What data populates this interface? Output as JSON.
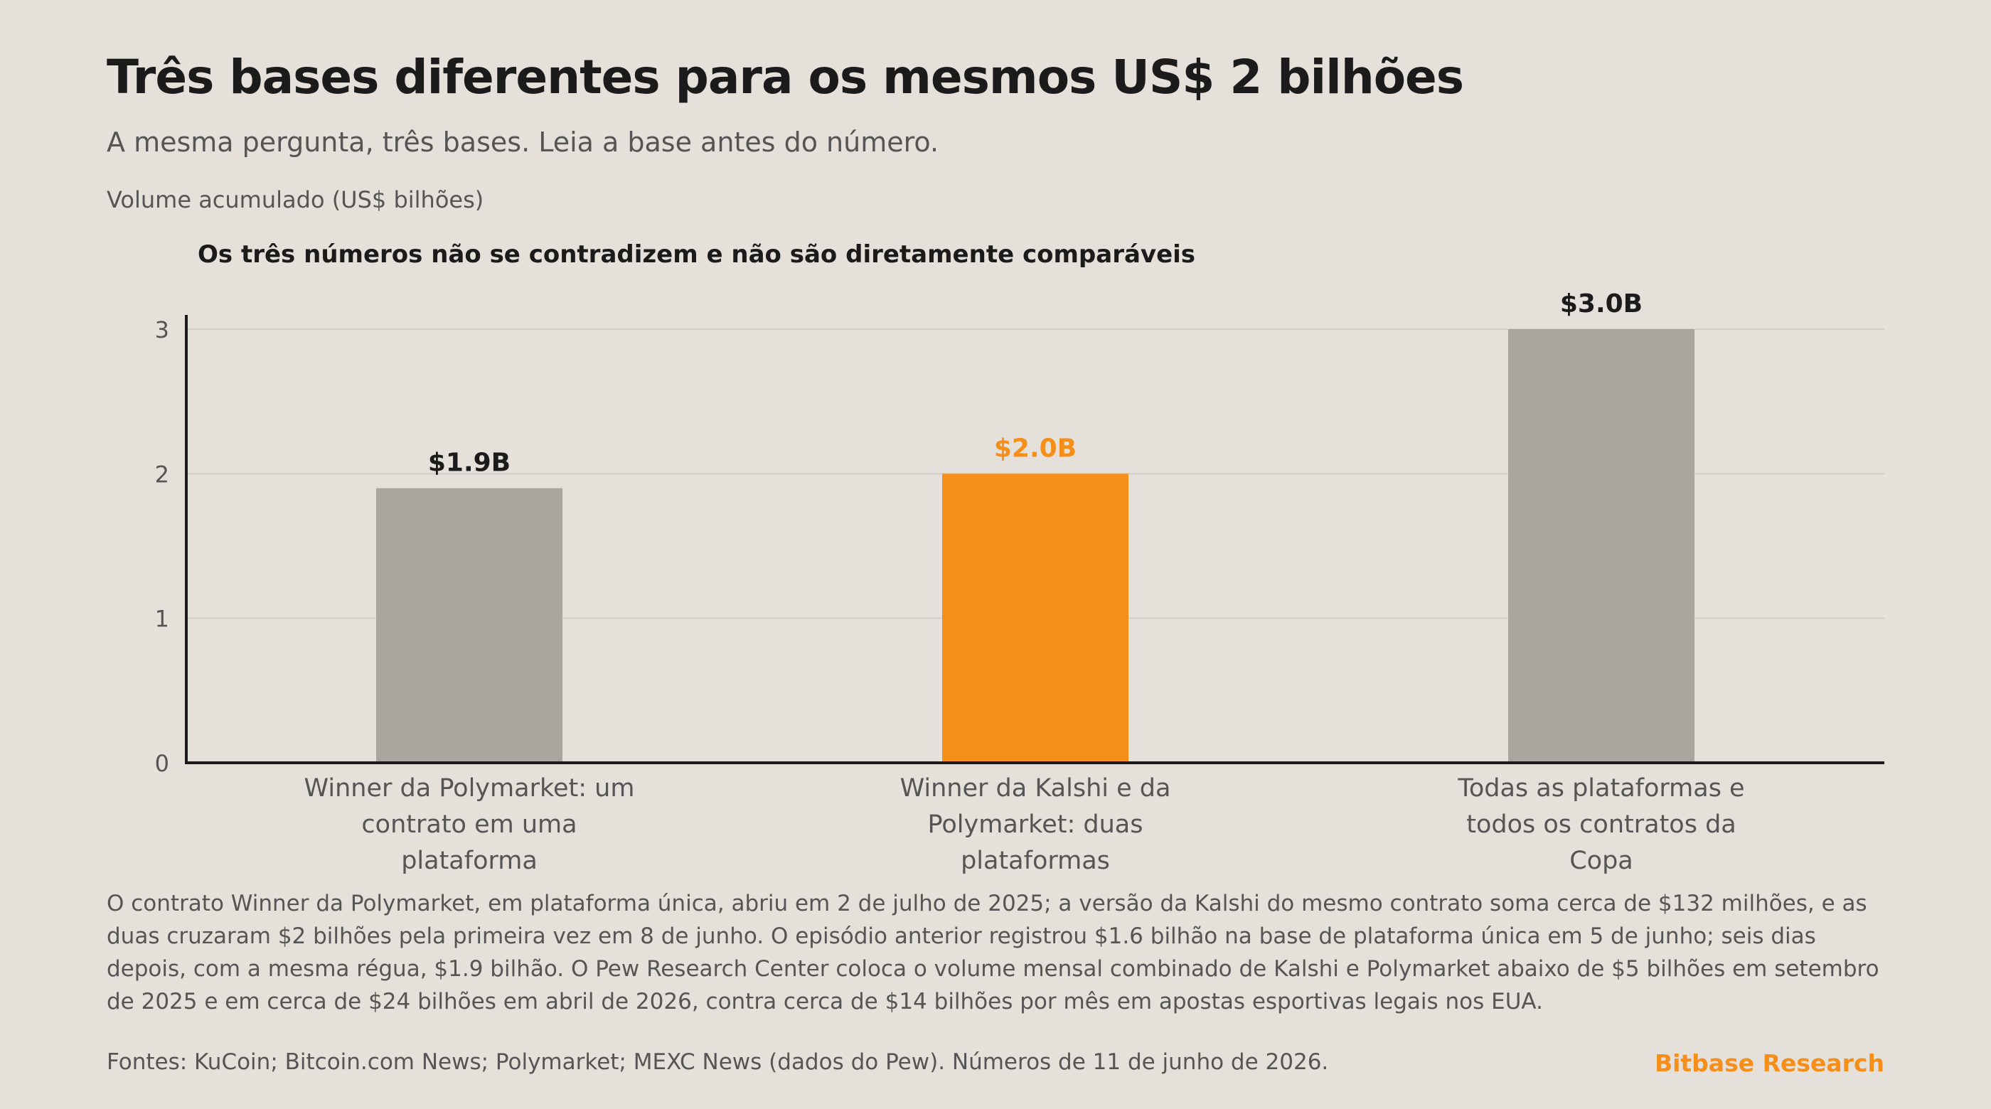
{
  "title": "Três bases diferentes para os mesmos US$ 2 bilhões",
  "subtitle": "A mesma pergunta, três bases. Leia a base antes do número.",
  "units_label": "Volume acumulado (US$ bilhões)",
  "note": "O contrato Winner da Polymarket, em plataforma única, abriu em 2 de julho de 2025; a versão da Kalshi do mesmo contrato soma cerca de $132 milhões, e as duas cruzaram $2 bilhões pela primeira vez em 8 de junho. O episódio anterior registrou $1.6 bilhão na base de plataforma única em 5 de junho; seis dias depois, com a mesma régua, $1.9 bilhão. O Pew Research Center coloca o volume mensal combinado de Kalshi e Polymarket abaixo de $5 bilhões em setembro de 2025 e em cerca de $24 bilhões em abril de 2026, contra cerca de $14 bilhões por mês em apostas esportivas legais nos EUA.",
  "sources": "Fontes: KuCoin; Bitcoin.com News; Polymarket; MEXC News (dados do Pew). Números de 11 de junho de 2026.",
  "brand": "Bitbase Research",
  "colors": {
    "background": "#e5e0da",
    "bar_default": "#aaa59f",
    "bar_highlight": "#f58f19",
    "text_dark": "#1b1b1b",
    "text_muted": "#555555",
    "gridline": "#d3cec8",
    "brand": "#f58f19"
  },
  "chart_data": {
    "type": "bar",
    "title": "Os três números não se contradizem e não são diretamente comparáveis",
    "ylabel": "Volume acumulado (US$ bilhões)",
    "xlabel": "",
    "ylim": [
      0,
      3
    ],
    "yticks": [
      0,
      1,
      2,
      3
    ],
    "grid": true,
    "categories": [
      "Winner da Polymarket: um contrato em uma plataforma",
      "Winner da Kalshi e da Polymarket: duas plataformas",
      "Todas as plataformas e todos os contratos da Copa"
    ],
    "category_lines": [
      [
        "Winner da Polymarket: um",
        "contrato em uma",
        "plataforma"
      ],
      [
        "Winner da Kalshi e da",
        "Polymarket: duas",
        "plataformas"
      ],
      [
        "Todas as plataformas e",
        "todos os contratos da",
        "Copa"
      ]
    ],
    "values": [
      1.9,
      2.0,
      3.0
    ],
    "data_labels": [
      "$1.9B",
      "$2.0B",
      "$3.0B"
    ],
    "highlight_index": 1
  }
}
